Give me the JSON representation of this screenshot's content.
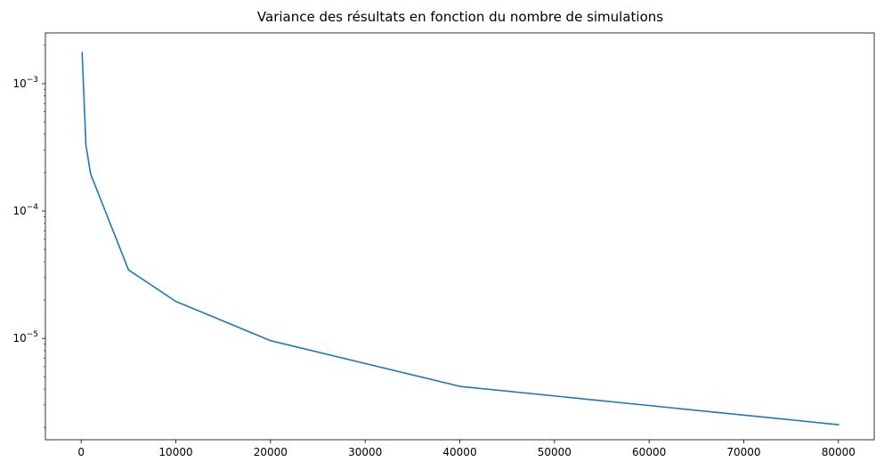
{
  "chart_data": {
    "type": "line",
    "title": "Variance des résultats en fonction du nombre de simulations",
    "xlabel": "",
    "ylabel": "",
    "y_scale": "log",
    "grid": false,
    "legend": "none",
    "xlim": [
      -3780,
      83780
    ],
    "ylim": [
      1.6e-06,
      0.0025
    ],
    "x_ticks": [
      {
        "value": 0,
        "label": "0"
      },
      {
        "value": 10000,
        "label": "10000"
      },
      {
        "value": 20000,
        "label": "20000"
      },
      {
        "value": 30000,
        "label": "30000"
      },
      {
        "value": 40000,
        "label": "40000"
      },
      {
        "value": 50000,
        "label": "50000"
      },
      {
        "value": 60000,
        "label": "60000"
      },
      {
        "value": 70000,
        "label": "70000"
      },
      {
        "value": 80000,
        "label": "80000"
      }
    ],
    "y_ticks": [
      {
        "value": 1e-05,
        "base": "10",
        "exponent": "−5"
      },
      {
        "value": 0.0001,
        "base": "10",
        "exponent": "−4"
      },
      {
        "value": 0.001,
        "base": "10",
        "exponent": "−3"
      }
    ],
    "series": [
      {
        "color": "#1f77b4",
        "x": [
          100,
          500,
          1000,
          5000,
          10000,
          20000,
          40000,
          80000
        ],
        "y": [
          0.00175,
          0.00033,
          0.000195,
          3.45e-05,
          1.95e-05,
          9.6e-06,
          4.2e-06,
          2.1e-06
        ]
      }
    ]
  }
}
